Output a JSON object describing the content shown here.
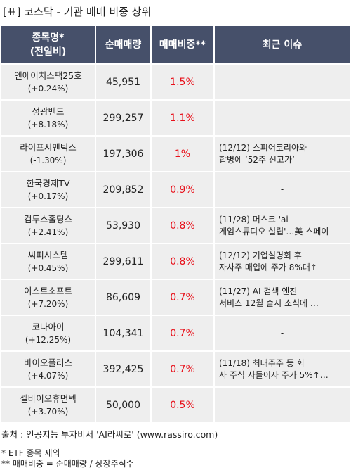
{
  "title": "[표] 코스닥 - 기관 매매 비중 상위",
  "headers": {
    "name_line1": "종목명*",
    "name_line2": "(전일비)",
    "volume": "순매매량",
    "ratio": "매매비중**",
    "issue": "최근 이슈"
  },
  "rows": [
    {
      "name": "엔에이치스팩25호",
      "change": "(+0.24%)",
      "volume": "45,951",
      "ratio": "1.5%",
      "issue": [
        "-"
      ]
    },
    {
      "name": "성광벤드",
      "change": "(+8.18%)",
      "volume": "299,257",
      "ratio": "1.1%",
      "issue": [
        "-"
      ]
    },
    {
      "name": "라이프시맨틱스",
      "change": "(-1.30%)",
      "volume": "197,306",
      "ratio": "1%",
      "issue": [
        "(12/12) 스피어코리아와",
        "합병에 ‘52주 신고가’"
      ]
    },
    {
      "name": "한국경제TV",
      "change": "(+0.17%)",
      "volume": "209,852",
      "ratio": "0.9%",
      "issue": [
        "-"
      ]
    },
    {
      "name": "컴투스홀딩스",
      "change": "(+2.41%)",
      "volume": "53,930",
      "ratio": "0.8%",
      "issue": [
        "(11/28) 머스크 'ai",
        "게임스튜디오 설립'…美 스페이"
      ]
    },
    {
      "name": "씨피시스템",
      "change": "(+0.45%)",
      "volume": "299,611",
      "ratio": "0.8%",
      "issue": [
        "(12/12) 기업설명회 후",
        "자사주 매입에 주가 8%대↑"
      ]
    },
    {
      "name": "이스트소프트",
      "change": "(+7.20%)",
      "volume": "86,609",
      "ratio": "0.7%",
      "issue": [
        "(11/27) AI 검색 엔진",
        " 서비스 12월 출시 소식에 …"
      ]
    },
    {
      "name": "코나아이",
      "change": "(+12.25%)",
      "volume": "104,341",
      "ratio": "0.7%",
      "issue": [
        "-"
      ]
    },
    {
      "name": "바이오플러스",
      "change": "(+4.07%)",
      "volume": "392,425",
      "ratio": "0.7%",
      "issue": [
        "(11/18) 최대주주 등 회",
        "사 주식 사들이자 주가 5%↑…"
      ]
    },
    {
      "name": "셀바이오휴먼텍",
      "change": "(+3.70%)",
      "volume": "50,000",
      "ratio": "0.5%",
      "issue": [
        "-"
      ]
    }
  ],
  "source": "출처 : 인공지능 투자비서 'AI라씨로' (www.rassiro.com)",
  "note1": "* ETF 종목 제외",
  "note2": "** 매매비중 = 순매매량 / 상장주식수",
  "colors": {
    "header_bg": "#46506a",
    "cell_bg": "#eeeeee",
    "ratio_red": "#e8101a"
  }
}
